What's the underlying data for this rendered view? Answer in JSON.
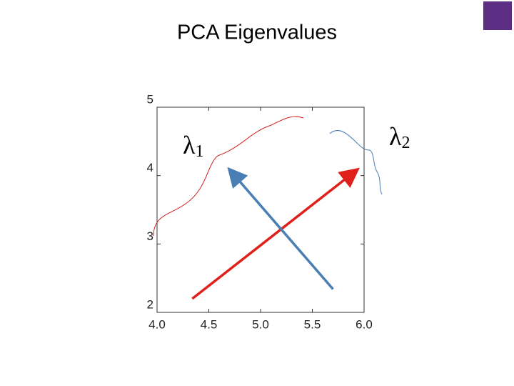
{
  "chart_data": {
    "type": "arrow",
    "title": "PCA Eigenvalues",
    "series": [
      {
        "name": null,
        "color": "#e0201b",
        "x": [
          4.34,
          5.92
        ],
        "values": [
          2.2,
          4.07
        ]
      },
      {
        "name": null,
        "color": "#4a7fb5",
        "x": [
          5.7,
          4.71
        ],
        "values": [
          2.34,
          4.07
        ]
      }
    ],
    "annotations": [
      {
        "symbol": "λ",
        "subscript": "1"
      },
      {
        "symbol": "λ",
        "subscript": "2"
      }
    ],
    "xlim": [
      4,
      6
    ],
    "ylim": [
      2,
      5
    ],
    "xticks": [
      {
        "value": 4,
        "label": "4.0"
      },
      {
        "value": 4.5,
        "label": "4.5"
      },
      {
        "value": 5,
        "label": "5.0"
      },
      {
        "value": 5.5,
        "label": "5.5"
      },
      {
        "value": 6,
        "label": "6.0"
      }
    ],
    "yticks": [
      2,
      3,
      4,
      5
    ],
    "grid": false
  }
}
